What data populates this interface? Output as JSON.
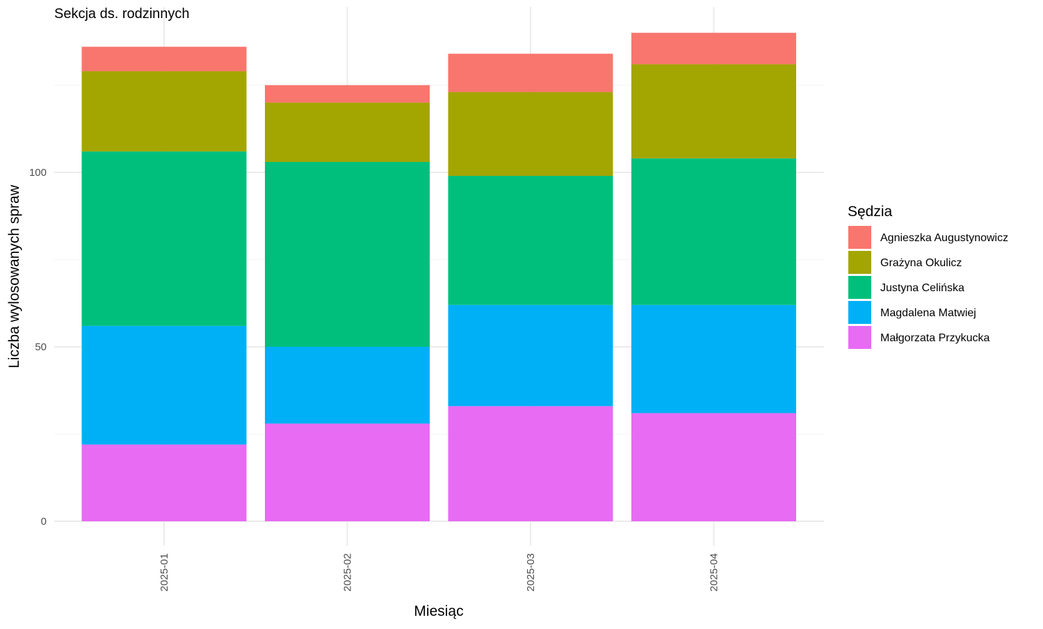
{
  "chart_data": {
    "type": "bar",
    "stacked": true,
    "title": "Sekcja ds. rodzinnych",
    "xlabel": "Miesiąc",
    "ylabel": "Liczba wylosowanych spraw",
    "categories": [
      "2025-01",
      "2025-02",
      "2025-03",
      "2025-04"
    ],
    "yticks": [
      0,
      50,
      100
    ],
    "ylim": [
      0,
      143
    ],
    "grid": true,
    "legend": {
      "title": "Sędzia",
      "position": "right"
    },
    "series": [
      {
        "name": "Małgorzata Przykucka",
        "color": "#E76BF3",
        "values": [
          22,
          28,
          33,
          31
        ]
      },
      {
        "name": "Magdalena Matwiej",
        "color": "#00B0F6",
        "values": [
          34,
          22,
          29,
          31
        ]
      },
      {
        "name": "Justyna Celińska",
        "color": "#00BF7D",
        "values": [
          50,
          53,
          37,
          42
        ]
      },
      {
        "name": "Grażyna Okulicz",
        "color": "#A3A500",
        "values": [
          23,
          17,
          24,
          27
        ]
      },
      {
        "name": "Agnieszka Augustynowicz",
        "color": "#F8766D",
        "values": [
          7,
          5,
          11,
          9
        ]
      }
    ],
    "legend_order": [
      "Agnieszka Augustynowicz",
      "Grażyna Okulicz",
      "Justyna Celińska",
      "Magdalena Matwiej",
      "Małgorzata Przykucka"
    ]
  }
}
